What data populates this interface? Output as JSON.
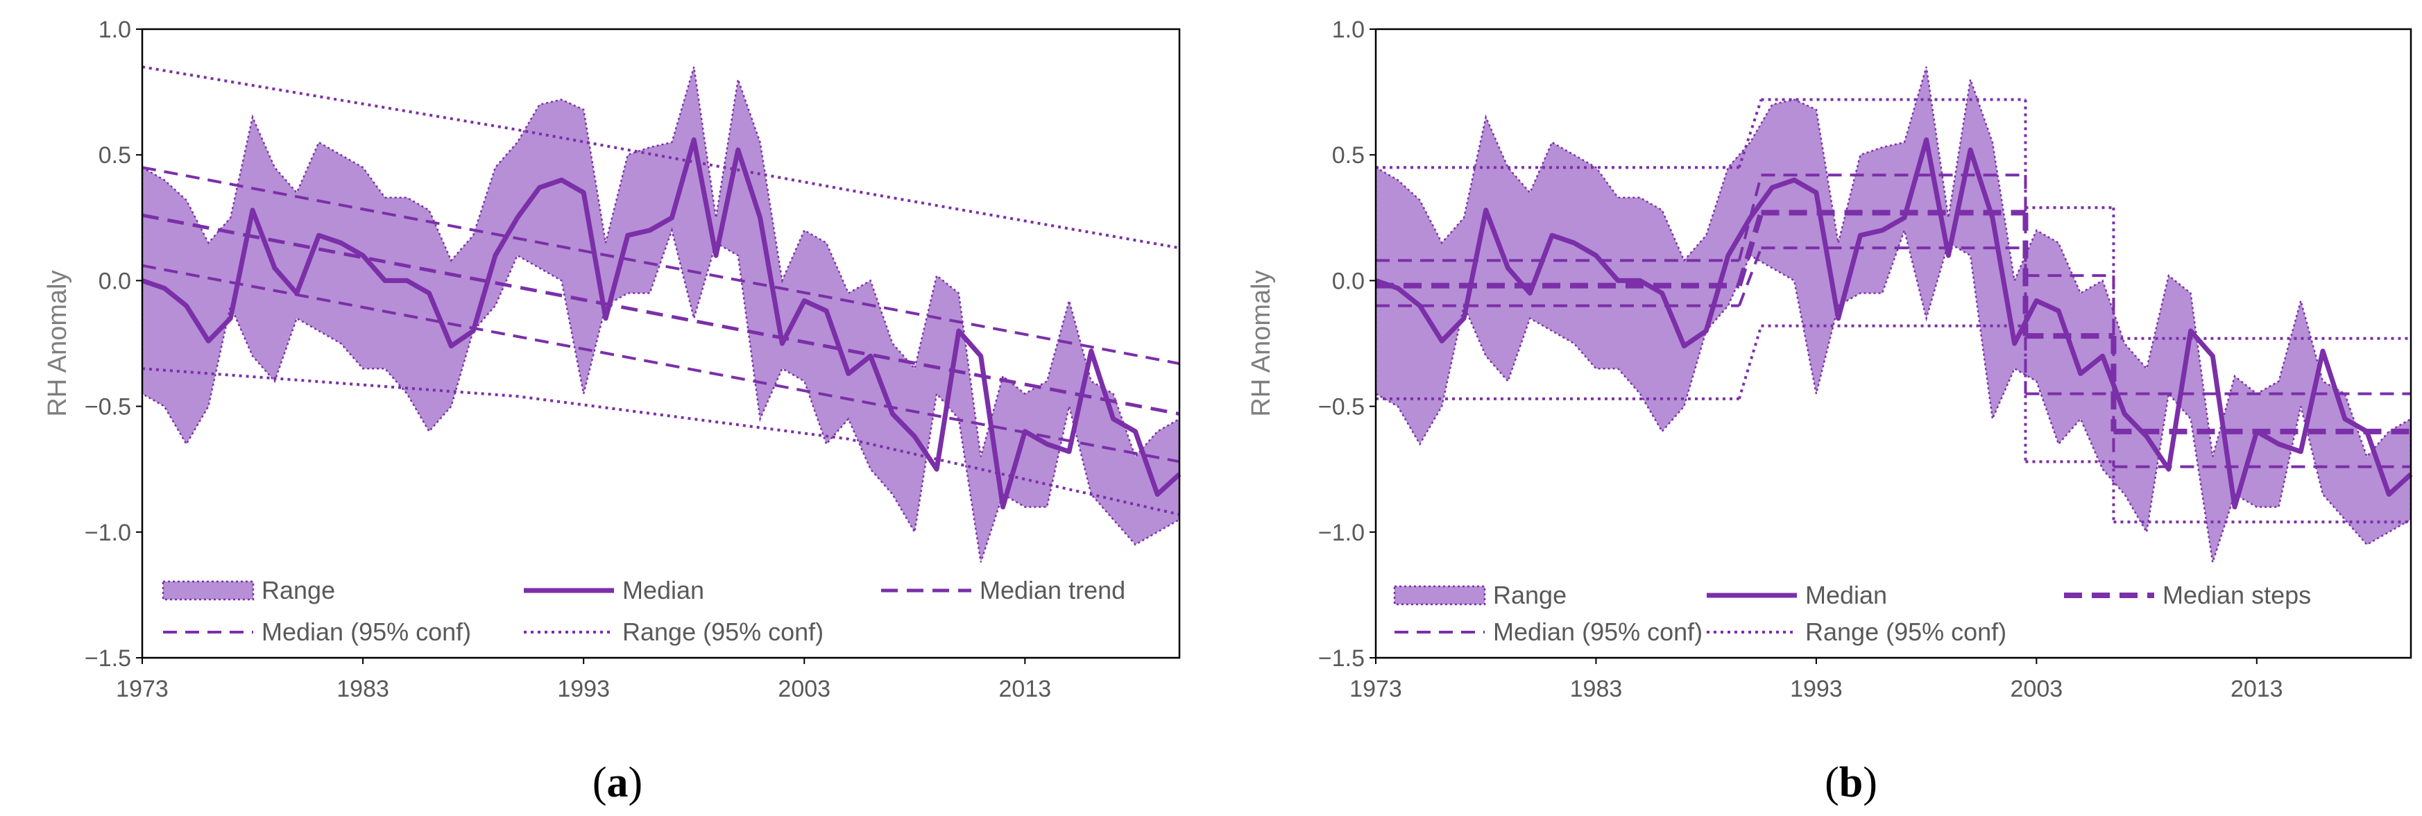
{
  "colors": {
    "line": "#7b2fa8",
    "band_fill": "#b68fd6",
    "axis": "#000000",
    "grid_baseline": "#d9d9d9",
    "tick_text": "#595959",
    "axis_title": "#7f7f7f"
  },
  "chart_data": [
    {
      "panel": "a",
      "type": "line",
      "caption_letter": "a",
      "ylabel": "RH Anomaly",
      "ylim": [
        -1.5,
        1.0
      ],
      "yticks": [
        1.0,
        0.5,
        0.0,
        -0.5,
        -1.0,
        -1.5
      ],
      "ytick_labels": [
        "1.0",
        "0.5",
        "0.0",
        "−0.5",
        "−1.0",
        "−1.5"
      ],
      "xlim": [
        1973,
        2020
      ],
      "xticks": [
        1973,
        1983,
        1993,
        2003,
        2013
      ],
      "xtick_labels": [
        "1973",
        "1983",
        "1993",
        "2003",
        "2013"
      ],
      "x": [
        1973,
        1974,
        1975,
        1976,
        1977,
        1978,
        1979,
        1980,
        1981,
        1982,
        1983,
        1984,
        1985,
        1986,
        1987,
        1988,
        1989,
        1990,
        1991,
        1992,
        1993,
        1994,
        1995,
        1996,
        1997,
        1998,
        1999,
        2000,
        2001,
        2002,
        2003,
        2004,
        2005,
        2006,
        2007,
        2008,
        2009,
        2010,
        2011,
        2012,
        2013,
        2014,
        2015,
        2016,
        2017,
        2018,
        2019,
        2020
      ],
      "series": [
        {
          "name": "Range upper",
          "values": [
            0.45,
            0.4,
            0.32,
            0.15,
            0.25,
            0.65,
            0.45,
            0.35,
            0.55,
            0.5,
            0.45,
            0.33,
            0.33,
            0.28,
            0.08,
            0.18,
            0.45,
            0.55,
            0.7,
            0.72,
            0.68,
            0.15,
            0.5,
            0.53,
            0.55,
            0.85,
            0.25,
            0.8,
            0.55,
            0.0,
            0.2,
            0.15,
            -0.05,
            0.0,
            -0.25,
            -0.35,
            0.02,
            -0.05,
            -0.7,
            -0.38,
            -0.45,
            -0.4,
            -0.08,
            -0.4,
            -0.45,
            -0.7,
            -0.6,
            -0.55
          ]
        },
        {
          "name": "Range lower",
          "values": [
            -0.45,
            -0.5,
            -0.65,
            -0.5,
            -0.1,
            -0.3,
            -0.4,
            -0.15,
            -0.2,
            -0.25,
            -0.35,
            -0.35,
            -0.45,
            -0.6,
            -0.5,
            -0.2,
            -0.1,
            0.1,
            0.05,
            0.0,
            -0.45,
            -0.1,
            -0.05,
            -0.05,
            0.2,
            -0.15,
            0.15,
            0.1,
            -0.55,
            -0.35,
            -0.4,
            -0.65,
            -0.55,
            -0.75,
            -0.85,
            -1.0,
            -0.45,
            -0.55,
            -1.12,
            -0.85,
            -0.9,
            -0.9,
            -0.5,
            -0.85,
            -0.95,
            -1.05,
            -1.0,
            -0.95
          ]
        },
        {
          "name": "Median",
          "values": [
            0.0,
            -0.03,
            -0.1,
            -0.24,
            -0.15,
            0.28,
            0.05,
            -0.05,
            0.18,
            0.15,
            0.1,
            0.0,
            0.0,
            -0.05,
            -0.26,
            -0.2,
            0.1,
            0.25,
            0.37,
            0.4,
            0.35,
            -0.15,
            0.18,
            0.2,
            0.25,
            0.56,
            0.1,
            0.52,
            0.25,
            -0.25,
            -0.08,
            -0.12,
            -0.37,
            -0.3,
            -0.53,
            -0.62,
            -0.75,
            -0.2,
            -0.3,
            -0.9,
            -0.6,
            -0.65,
            -0.68,
            -0.28,
            -0.55,
            -0.6,
            -0.85,
            -0.77
          ]
        },
        {
          "name": "Median trend",
          "values": [
            0.26,
            -0.53
          ],
          "x": [
            1973,
            2020
          ]
        },
        {
          "name": "Median (95% conf) upper",
          "values": [
            0.45,
            -0.33
          ],
          "x": [
            1973,
            2020
          ]
        },
        {
          "name": "Median (95% conf) lower",
          "values": [
            0.06,
            -0.72
          ],
          "x": [
            1973,
            2020
          ]
        },
        {
          "name": "Range (95% conf) upper",
          "values": [
            0.85,
            0.6,
            0.36,
            0.13
          ],
          "x": [
            1973,
            1990,
            2005,
            2020
          ]
        },
        {
          "name": "Range (95% conf) lower",
          "values": [
            -0.35,
            -0.46,
            -0.63,
            -0.93
          ],
          "x": [
            1973,
            1990,
            2005,
            2020
          ]
        }
      ],
      "legend": [
        {
          "key": "range",
          "label": "Range"
        },
        {
          "key": "median",
          "label": "Median"
        },
        {
          "key": "trend",
          "label": "Median trend"
        },
        {
          "key": "medconf",
          "label": "Median (95% conf)"
        },
        {
          "key": "rangeconf",
          "label": "Range (95% conf)"
        }
      ]
    },
    {
      "panel": "b",
      "type": "line",
      "caption_letter": "b",
      "ylabel": "RH Anomaly",
      "ylim": [
        -1.5,
        1.0
      ],
      "yticks": [
        1.0,
        0.5,
        0.0,
        -0.5,
        -1.0,
        -1.5
      ],
      "ytick_labels": [
        "1.0",
        "0.5",
        "0.0",
        "−0.5",
        "−1.0",
        "−1.5"
      ],
      "xlim": [
        1973,
        2020
      ],
      "xticks": [
        1973,
        1983,
        1993,
        2003,
        2013
      ],
      "xtick_labels": [
        "1973",
        "1983",
        "1993",
        "2003",
        "2013"
      ],
      "x": [
        1973,
        1974,
        1975,
        1976,
        1977,
        1978,
        1979,
        1980,
        1981,
        1982,
        1983,
        1984,
        1985,
        1986,
        1987,
        1988,
        1989,
        1990,
        1991,
        1992,
        1993,
        1994,
        1995,
        1996,
        1997,
        1998,
        1999,
        2000,
        2001,
        2002,
        2003,
        2004,
        2005,
        2006,
        2007,
        2008,
        2009,
        2010,
        2011,
        2012,
        2013,
        2014,
        2015,
        2016,
        2017,
        2018,
        2019,
        2020
      ],
      "series": [
        {
          "name": "Range upper",
          "values": [
            0.45,
            0.4,
            0.32,
            0.15,
            0.25,
            0.65,
            0.45,
            0.35,
            0.55,
            0.5,
            0.45,
            0.33,
            0.33,
            0.28,
            0.08,
            0.18,
            0.45,
            0.55,
            0.7,
            0.72,
            0.68,
            0.15,
            0.5,
            0.53,
            0.55,
            0.85,
            0.25,
            0.8,
            0.55,
            0.0,
            0.2,
            0.15,
            -0.05,
            0.0,
            -0.25,
            -0.35,
            0.02,
            -0.05,
            -0.7,
            -0.38,
            -0.45,
            -0.4,
            -0.08,
            -0.4,
            -0.45,
            -0.7,
            -0.6,
            -0.55
          ]
        },
        {
          "name": "Range lower",
          "values": [
            -0.45,
            -0.5,
            -0.65,
            -0.5,
            -0.1,
            -0.3,
            -0.4,
            -0.15,
            -0.2,
            -0.25,
            -0.35,
            -0.35,
            -0.45,
            -0.6,
            -0.5,
            -0.2,
            -0.1,
            0.1,
            0.05,
            0.0,
            -0.45,
            -0.1,
            -0.05,
            -0.05,
            0.2,
            -0.15,
            0.15,
            0.1,
            -0.55,
            -0.35,
            -0.4,
            -0.65,
            -0.55,
            -0.75,
            -0.85,
            -1.0,
            -0.45,
            -0.55,
            -1.12,
            -0.85,
            -0.9,
            -0.9,
            -0.5,
            -0.85,
            -0.95,
            -1.05,
            -1.0,
            -0.95
          ]
        },
        {
          "name": "Median",
          "values": [
            0.0,
            -0.03,
            -0.1,
            -0.24,
            -0.15,
            0.28,
            0.05,
            -0.05,
            0.18,
            0.15,
            0.1,
            0.0,
            0.0,
            -0.05,
            -0.26,
            -0.2,
            0.1,
            0.25,
            0.37,
            0.4,
            0.35,
            -0.15,
            0.18,
            0.2,
            0.25,
            0.56,
            0.1,
            0.52,
            0.25,
            -0.25,
            -0.08,
            -0.12,
            -0.37,
            -0.3,
            -0.53,
            -0.62,
            -0.75,
            -0.2,
            -0.3,
            -0.9,
            -0.6,
            -0.65,
            -0.68,
            -0.28,
            -0.55,
            -0.6,
            -0.85,
            -0.77
          ]
        },
        {
          "name": "Median steps",
          "steps": [
            [
              1973,
              1989.5,
              -0.02
            ],
            [
              1990.5,
              2002.5,
              0.27
            ],
            [
              2002.5,
              2006.5,
              -0.22
            ],
            [
              2006.5,
              2020,
              -0.6
            ]
          ]
        },
        {
          "name": "Median (95% conf) upper",
          "steps": [
            [
              1973,
              1989.5,
              0.08
            ],
            [
              1990.5,
              2002.5,
              0.42
            ],
            [
              2002.5,
              2006.5,
              0.02
            ],
            [
              2006.5,
              2020,
              -0.45
            ]
          ]
        },
        {
          "name": "Median (95% conf) lower",
          "steps": [
            [
              1973,
              1989.5,
              -0.1
            ],
            [
              1990.5,
              2002.5,
              0.13
            ],
            [
              2002.5,
              2006.5,
              -0.45
            ],
            [
              2006.5,
              2020,
              -0.74
            ]
          ]
        },
        {
          "name": "Range (95% conf) upper",
          "steps": [
            [
              1973,
              1989.5,
              0.45
            ],
            [
              1990.5,
              2002.5,
              0.72
            ],
            [
              2002.5,
              2006.5,
              0.29
            ],
            [
              2006.5,
              2020,
              -0.23
            ]
          ]
        },
        {
          "name": "Range (95% conf) lower",
          "steps": [
            [
              1973,
              1989.5,
              -0.47
            ],
            [
              1990.5,
              2002.5,
              -0.18
            ],
            [
              2002.5,
              2006.5,
              -0.72
            ],
            [
              2006.5,
              2020,
              -0.96
            ]
          ]
        }
      ],
      "legend": [
        {
          "key": "range",
          "label": "Range"
        },
        {
          "key": "median",
          "label": "Median"
        },
        {
          "key": "steps",
          "label": "Median steps"
        },
        {
          "key": "medconf",
          "label": "Median (95% conf)"
        },
        {
          "key": "rangeconf",
          "label": "Range (95% conf)"
        }
      ]
    }
  ]
}
